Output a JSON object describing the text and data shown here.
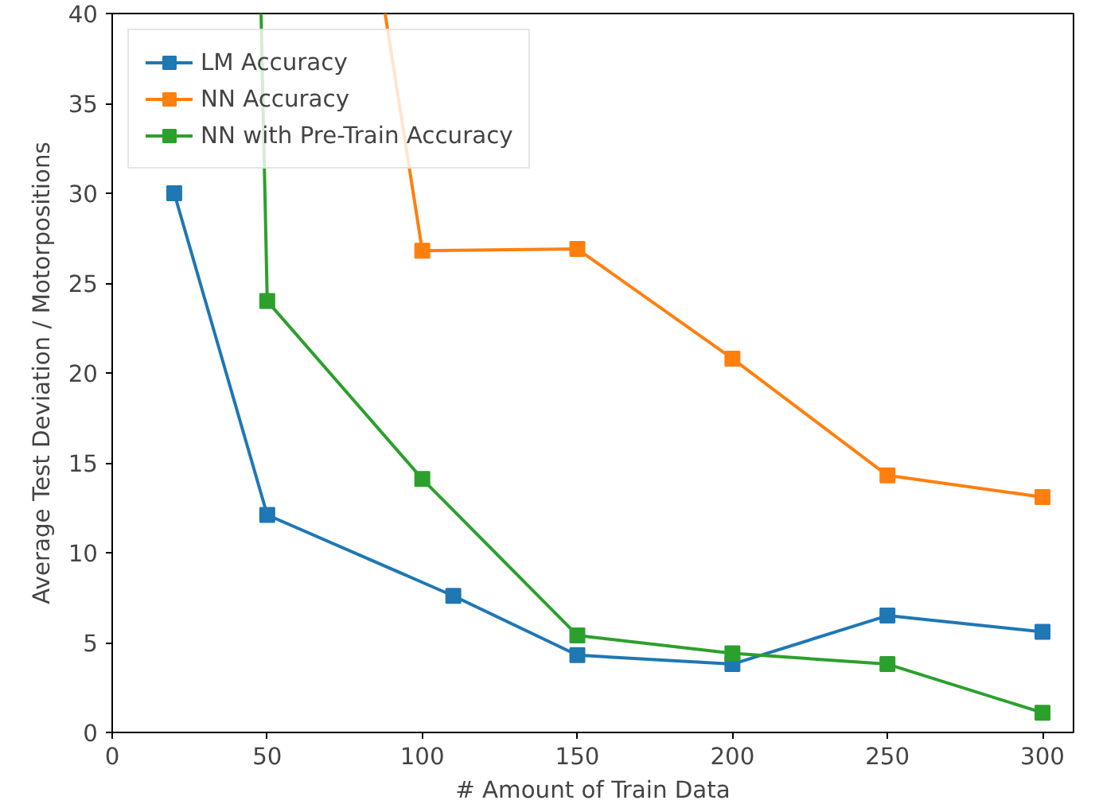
{
  "chart_data": {
    "type": "line",
    "xlabel": "# Amount of Train Data",
    "ylabel": "Average Test Deviation / Motorpositions",
    "series": [
      {
        "name": "LM Accuracy",
        "color": "#1f77b4",
        "x": [
          20,
          50,
          110,
          150,
          200,
          250,
          300
        ],
        "values": [
          30,
          12.1,
          7.6,
          4.3,
          3.8,
          6.5,
          5.6
        ]
      },
      {
        "name": "NN Accuracy",
        "color": "#ff7f0e",
        "x": [
          88,
          100,
          150,
          200,
          250,
          300
        ],
        "values": [
          40,
          26.8,
          26.9,
          20.8,
          14.3,
          13.1
        ]
      },
      {
        "name": "NN with Pre-Train Accuracy",
        "color": "#2ca02c",
        "x": [
          48,
          50,
          100,
          150,
          200,
          250,
          300
        ],
        "values": [
          40,
          24,
          14.1,
          5.4,
          4.4,
          3.8,
          1.1
        ]
      }
    ],
    "xlim": [
      0,
      310
    ],
    "ylim": [
      0,
      40
    ],
    "xticks": [
      0,
      50,
      100,
      150,
      200,
      250,
      300
    ],
    "yticks": [
      0,
      5,
      10,
      15,
      20,
      25,
      30,
      35,
      40
    ],
    "grid": false,
    "legend": "top left",
    "marker": "square",
    "line_style": "solid"
  }
}
